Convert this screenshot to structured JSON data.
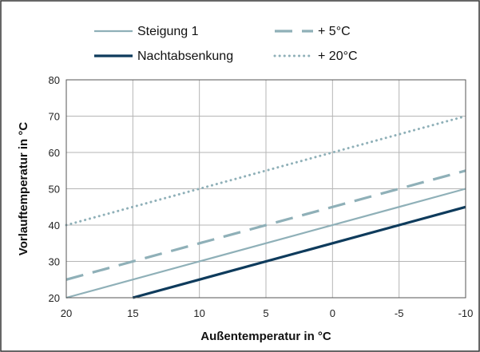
{
  "chart_data": {
    "type": "line",
    "title": "",
    "xlabel": "Außentemperatur in °C",
    "ylabel": "Vorlauftemperatur in °C",
    "xlim": [
      20,
      -10
    ],
    "ylim": [
      20,
      80
    ],
    "x_ticks": [
      20,
      15,
      10,
      5,
      0,
      -5,
      -10
    ],
    "y_ticks": [
      20,
      30,
      40,
      50,
      60,
      70,
      80
    ],
    "grid": true,
    "legend_position": "top",
    "series": [
      {
        "name": "Steigung 1",
        "x": [
          20,
          -10
        ],
        "y": [
          20,
          50
        ],
        "color": "#8fb0b8",
        "style": "solid"
      },
      {
        "name": "Nachtabsenkung",
        "x": [
          15,
          -10
        ],
        "y": [
          20,
          45
        ],
        "color": "#0e3b5c",
        "style": "solid-bold"
      },
      {
        "name": "+ 5°C",
        "x": [
          20,
          -10
        ],
        "y": [
          25,
          55
        ],
        "color": "#8fb0b8",
        "style": "dashed"
      },
      {
        "name": "+ 20°C",
        "x": [
          20,
          -10
        ],
        "y": [
          40,
          70
        ],
        "color": "#8fb0b8",
        "style": "dotted"
      }
    ]
  }
}
